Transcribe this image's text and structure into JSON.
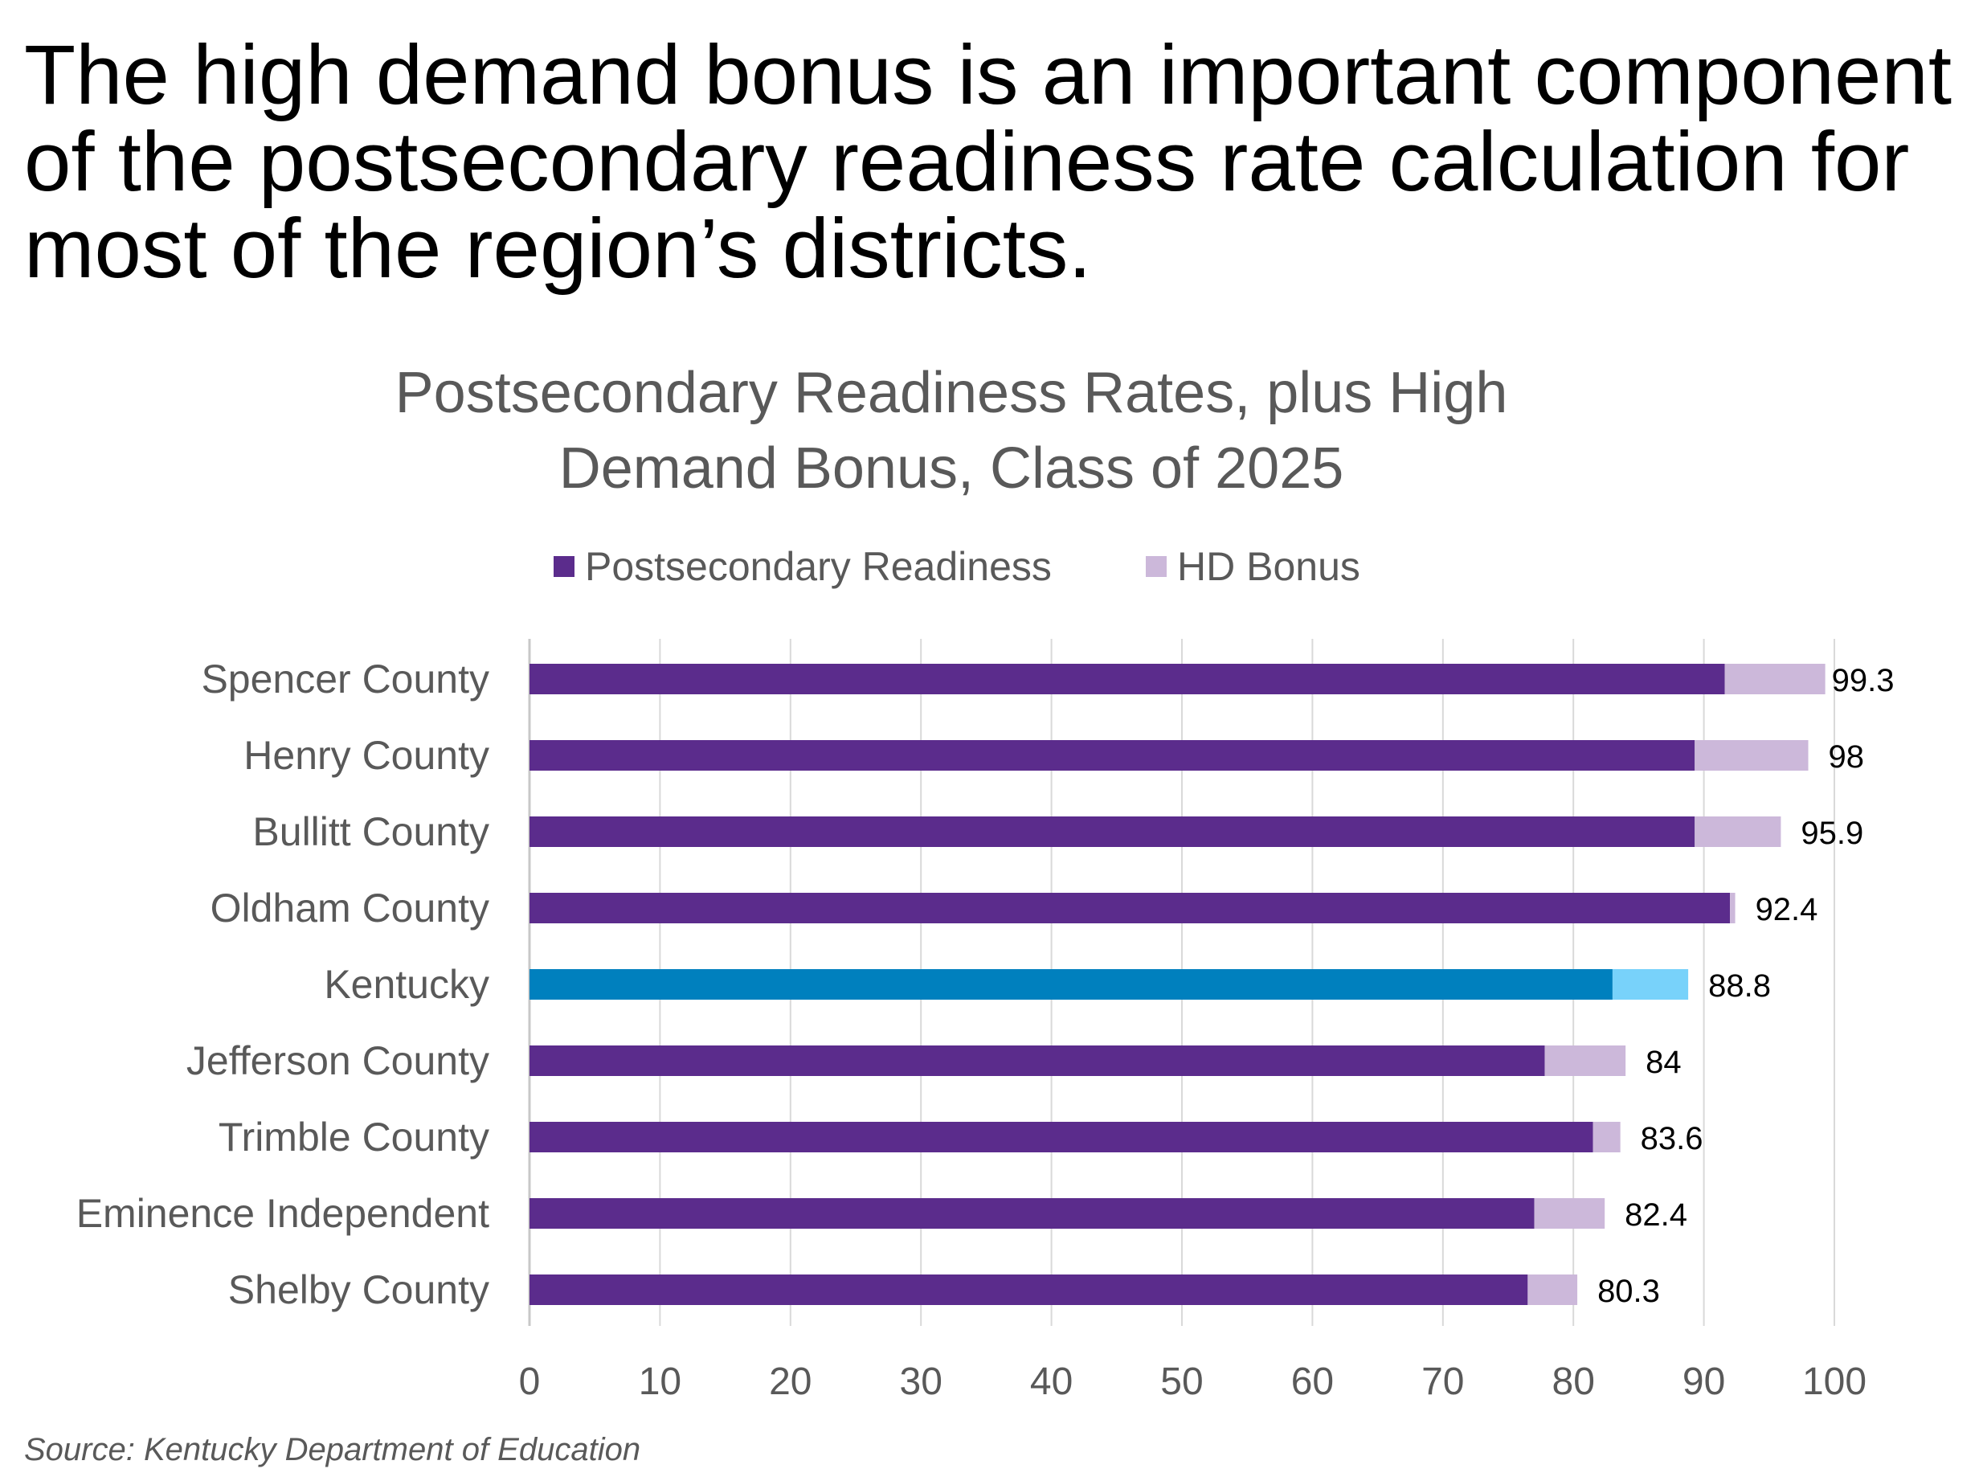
{
  "headline": "The high demand bonus is an important component of the postsecondary readiness rate calculation for most of the region’s districts.",
  "source": "Source: Kentucky Department of Education",
  "chart_data": {
    "type": "bar",
    "orientation": "horizontal",
    "stacked": true,
    "title": [
      "Postsecondary Readiness Rates, plus High",
      "Demand Bonus, Class of 2025"
    ],
    "legend": {
      "position": "top",
      "entries": [
        {
          "label": "Postsecondary Readiness",
          "color": "#5b2c8c"
        },
        {
          "label": "HD Bonus",
          "color": "#ccb8da"
        }
      ]
    },
    "categories": [
      "Spencer County",
      "Henry County",
      "Bullitt County",
      "Oldham County",
      "Kentucky",
      "Jefferson County",
      "Trimble County",
      "Eminence Independent",
      "Shelby County"
    ],
    "series": [
      {
        "name": "Postsecondary Readiness",
        "values": [
          91.6,
          89.3,
          89.3,
          92.0,
          83.0,
          77.8,
          81.5,
          77.0,
          76.5
        ]
      },
      {
        "name": "HD Bonus",
        "values": [
          7.7,
          8.7,
          6.6,
          0.4,
          5.8,
          6.2,
          2.1,
          5.4,
          3.8
        ]
      }
    ],
    "totals": [
      "99.3",
      "98",
      "95.9",
      "92.4",
      "88.8",
      "84",
      "83.6",
      "82.4",
      "80.3"
    ],
    "highlight": {
      "category": "Kentucky",
      "colors": [
        "#0080be",
        "#78d2fa"
      ]
    },
    "xlim": [
      0,
      100
    ],
    "xticks": [
      "0",
      "10",
      "20",
      "30",
      "40",
      "50",
      "60",
      "70",
      "80",
      "90",
      "100"
    ],
    "grid": "vertical",
    "gridColor": "#d9d9d9"
  }
}
